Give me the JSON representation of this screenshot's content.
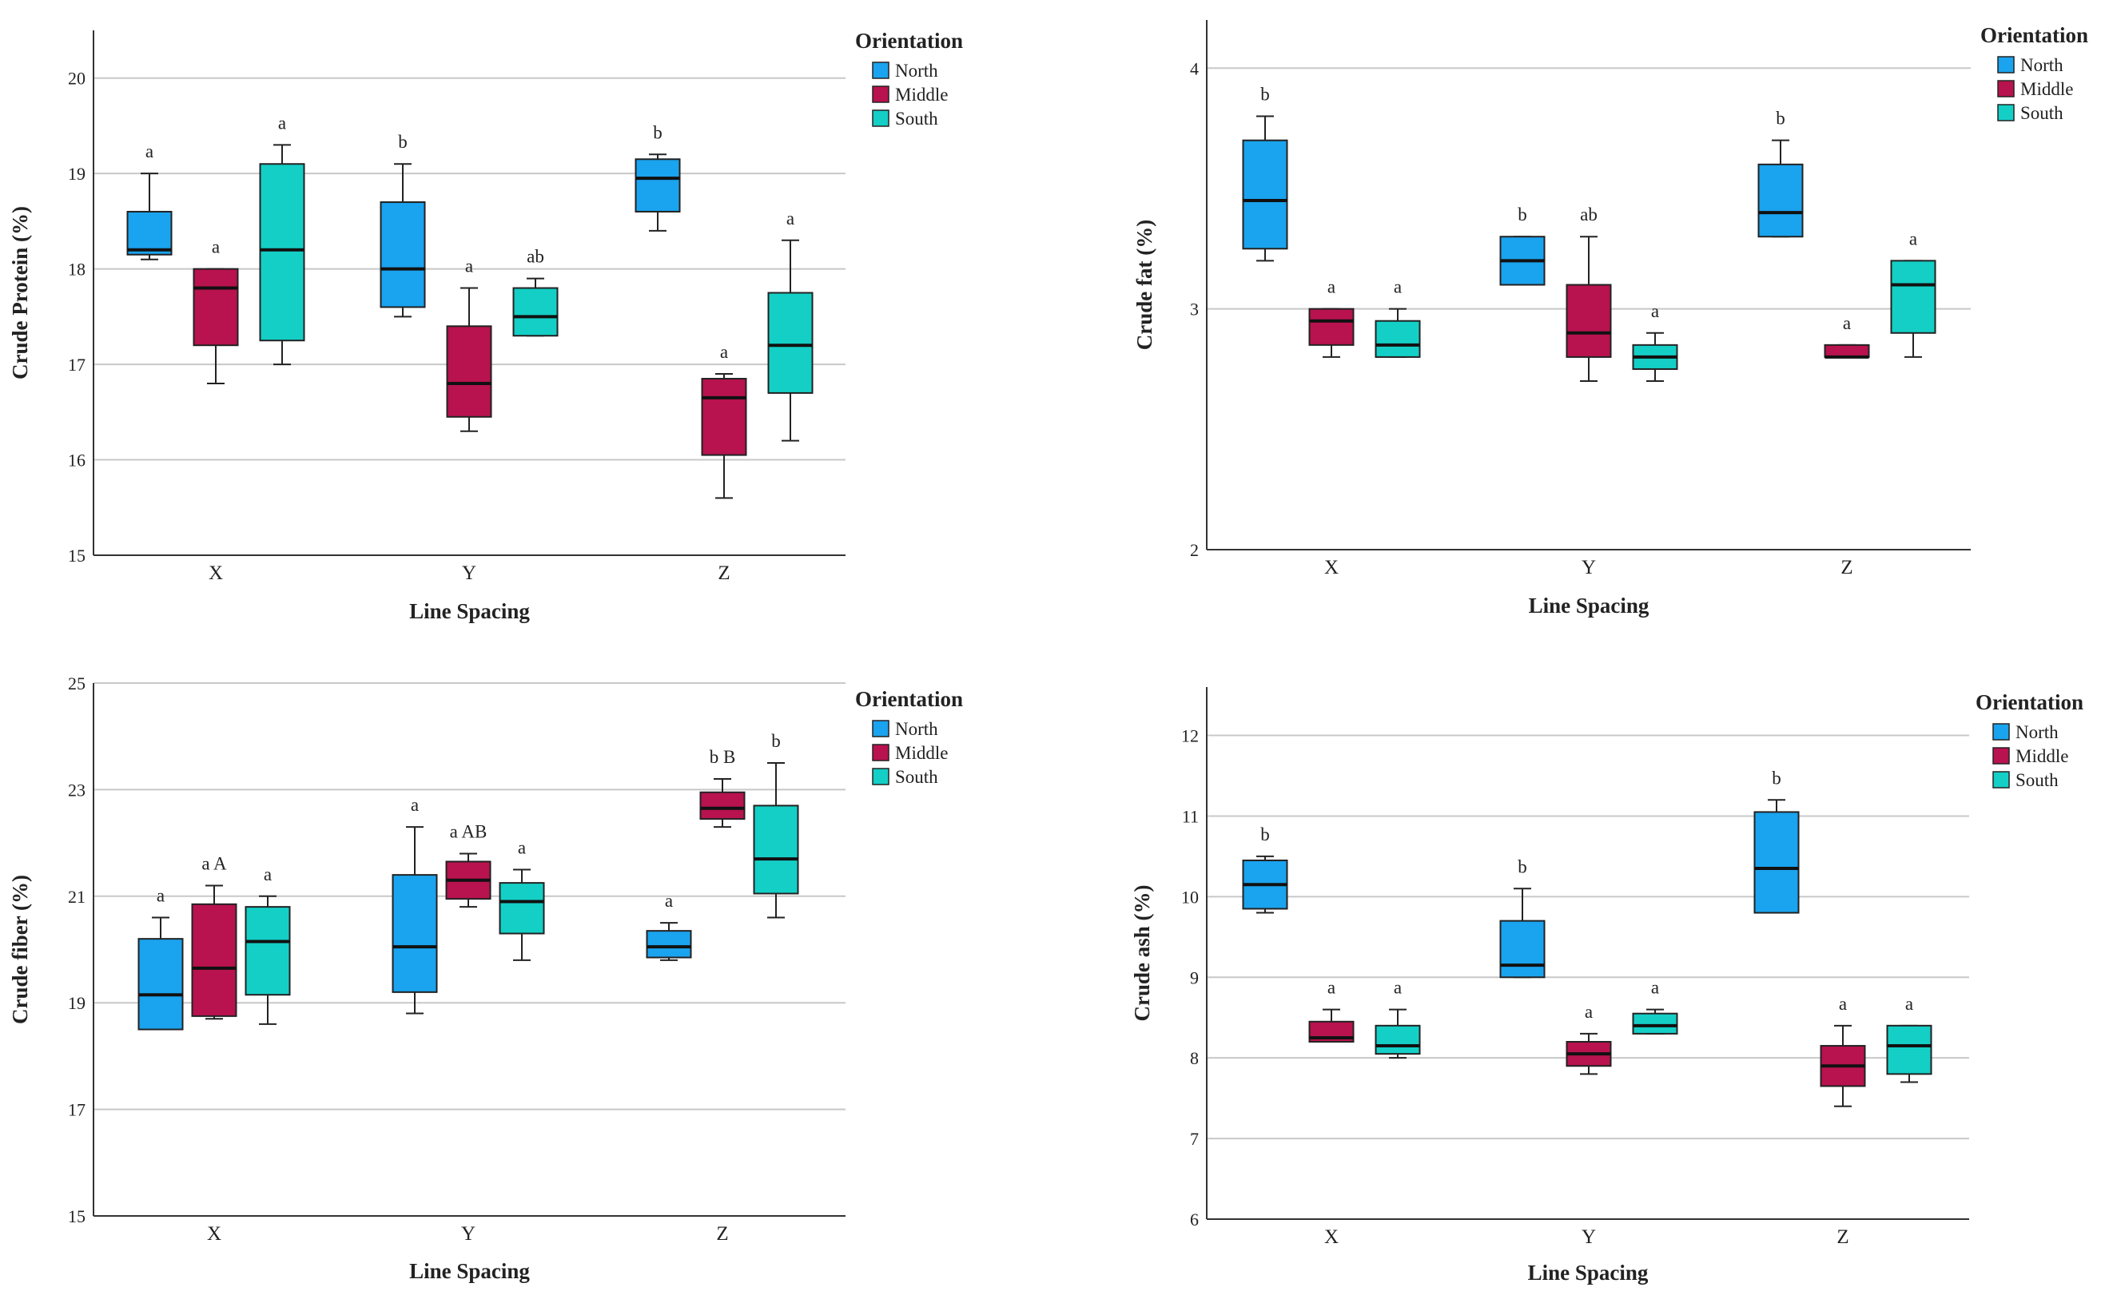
{
  "legend": {
    "title": "Orientation",
    "series": [
      {
        "name": "North",
        "color": "#1aa3ee"
      },
      {
        "name": "Middle",
        "color": "#b8124f"
      },
      {
        "name": "South",
        "color": "#14cfc6"
      }
    ]
  },
  "chart_data": [
    {
      "type": "box",
      "title": "",
      "xlabel": "Line Spacing",
      "ylabel": "Crude Protein (%)",
      "ylim": [
        15,
        20.5
      ],
      "yticks": [
        15,
        16,
        17,
        18,
        19,
        20
      ],
      "categories": [
        "X",
        "Y",
        "Z"
      ],
      "series": [
        {
          "name": "North",
          "boxes": [
            {
              "min": 18.1,
              "q1": 18.15,
              "median": 18.2,
              "q3": 18.6,
              "max": 19.0,
              "letter": "a"
            },
            {
              "min": 17.5,
              "q1": 17.6,
              "median": 18.0,
              "q3": 18.7,
              "max": 19.1,
              "letter": "b"
            },
            {
              "min": 18.4,
              "q1": 18.6,
              "median": 18.95,
              "q3": 19.15,
              "max": 19.2,
              "letter": "b"
            }
          ]
        },
        {
          "name": "Middle",
          "boxes": [
            {
              "min": 16.8,
              "q1": 17.2,
              "median": 17.8,
              "q3": 18.0,
              "max": 18.0,
              "letter": "a"
            },
            {
              "min": 16.3,
              "q1": 16.45,
              "median": 16.8,
              "q3": 17.4,
              "max": 17.8,
              "letter": "a"
            },
            {
              "min": 15.6,
              "q1": 16.05,
              "median": 16.65,
              "q3": 16.85,
              "max": 16.9,
              "letter": "a"
            }
          ]
        },
        {
          "name": "South",
          "boxes": [
            {
              "min": 17.0,
              "q1": 17.25,
              "median": 18.2,
              "q3": 19.1,
              "max": 19.3,
              "letter": "a"
            },
            {
              "min": 17.3,
              "q1": 17.3,
              "median": 17.5,
              "q3": 17.8,
              "max": 17.9,
              "letter": "ab"
            },
            {
              "min": 16.2,
              "q1": 16.7,
              "median": 17.2,
              "q3": 17.75,
              "max": 18.3,
              "letter": "a"
            }
          ]
        }
      ]
    },
    {
      "type": "box",
      "title": "",
      "xlabel": "Line Spacing",
      "ylabel": "Crude fat (%)",
      "ylim": [
        2,
        4.2
      ],
      "yticks": [
        2,
        3,
        4
      ],
      "categories": [
        "X",
        "Y",
        "Z"
      ],
      "series": [
        {
          "name": "North",
          "boxes": [
            {
              "min": 3.2,
              "q1": 3.25,
              "median": 3.45,
              "q3": 3.7,
              "max": 3.8,
              "letter": "b"
            },
            {
              "min": 3.1,
              "q1": 3.1,
              "median": 3.2,
              "q3": 3.3,
              "max": 3.3,
              "letter": "b"
            },
            {
              "min": 3.3,
              "q1": 3.3,
              "median": 3.4,
              "q3": 3.6,
              "max": 3.7,
              "letter": "b"
            }
          ]
        },
        {
          "name": "Middle",
          "boxes": [
            {
              "min": 2.8,
              "q1": 2.85,
              "median": 2.95,
              "q3": 3.0,
              "max": 3.0,
              "letter": "a"
            },
            {
              "min": 2.7,
              "q1": 2.8,
              "median": 2.9,
              "q3": 3.1,
              "max": 3.3,
              "letter": "ab"
            },
            {
              "min": 2.8,
              "q1": 2.8,
              "median": 2.8,
              "q3": 2.85,
              "max": 2.85,
              "letter": "a"
            }
          ]
        },
        {
          "name": "South",
          "boxes": [
            {
              "min": 2.8,
              "q1": 2.8,
              "median": 2.85,
              "q3": 2.95,
              "max": 3.0,
              "letter": "a"
            },
            {
              "min": 2.7,
              "q1": 2.75,
              "median": 2.8,
              "q3": 2.85,
              "max": 2.9,
              "letter": "a"
            },
            {
              "min": 2.8,
              "q1": 2.9,
              "median": 3.1,
              "q3": 3.2,
              "max": 3.2,
              "letter": "a"
            }
          ]
        }
      ]
    },
    {
      "type": "box",
      "title": "",
      "xlabel": "Line Spacing",
      "ylabel": "Crude fiber (%)",
      "ylim": [
        15,
        25
      ],
      "yticks": [
        15,
        17,
        19,
        21,
        23,
        25
      ],
      "categories": [
        "X",
        "Y",
        "Z"
      ],
      "series": [
        {
          "name": "North",
          "boxes": [
            {
              "min": 18.5,
              "q1": 18.5,
              "median": 19.15,
              "q3": 20.2,
              "max": 20.6,
              "letter": "a"
            },
            {
              "min": 18.8,
              "q1": 19.2,
              "median": 20.05,
              "q3": 21.4,
              "max": 22.3,
              "letter": "a"
            },
            {
              "min": 19.8,
              "q1": 19.85,
              "median": 20.05,
              "q3": 20.35,
              "max": 20.5,
              "letter": "a"
            }
          ]
        },
        {
          "name": "Middle",
          "boxes": [
            {
              "min": 18.7,
              "q1": 18.75,
              "median": 19.65,
              "q3": 20.85,
              "max": 21.2,
              "letter": "a A"
            },
            {
              "min": 20.8,
              "q1": 20.95,
              "median": 21.3,
              "q3": 21.65,
              "max": 21.8,
              "letter": "a AB"
            },
            {
              "min": 22.3,
              "q1": 22.45,
              "median": 22.65,
              "q3": 22.95,
              "max": 23.2,
              "letter": "b B"
            }
          ]
        },
        {
          "name": "South",
          "boxes": [
            {
              "min": 18.6,
              "q1": 19.15,
              "median": 20.15,
              "q3": 20.8,
              "max": 21.0,
              "letter": "a"
            },
            {
              "min": 19.8,
              "q1": 20.3,
              "median": 20.9,
              "q3": 21.25,
              "max": 21.5,
              "letter": "a"
            },
            {
              "min": 20.6,
              "q1": 21.05,
              "median": 21.7,
              "q3": 22.7,
              "max": 23.5,
              "letter": "b"
            }
          ]
        }
      ]
    },
    {
      "type": "box",
      "title": "",
      "xlabel": "Line Spacing",
      "ylabel": "Crude ash (%)",
      "ylim": [
        6,
        12.6
      ],
      "yticks": [
        6,
        7,
        8,
        9,
        10,
        11,
        12
      ],
      "categories": [
        "X",
        "Y",
        "Z"
      ],
      "series": [
        {
          "name": "North",
          "boxes": [
            {
              "min": 9.8,
              "q1": 9.85,
              "median": 10.15,
              "q3": 10.45,
              "max": 10.5,
              "letter": "b"
            },
            {
              "min": 9.0,
              "q1": 9.0,
              "median": 9.15,
              "q3": 9.7,
              "max": 10.1,
              "letter": "b"
            },
            {
              "min": 9.8,
              "q1": 9.8,
              "median": 10.35,
              "q3": 11.05,
              "max": 11.2,
              "letter": "b"
            }
          ]
        },
        {
          "name": "Middle",
          "boxes": [
            {
              "min": 8.2,
              "q1": 8.2,
              "median": 8.25,
              "q3": 8.45,
              "max": 8.6,
              "letter": "a"
            },
            {
              "min": 7.8,
              "q1": 7.9,
              "median": 8.05,
              "q3": 8.2,
              "max": 8.3,
              "letter": "a"
            },
            {
              "min": 7.4,
              "q1": 7.65,
              "median": 7.9,
              "q3": 8.15,
              "max": 8.4,
              "letter": "a"
            }
          ]
        },
        {
          "name": "South",
          "boxes": [
            {
              "min": 8.0,
              "q1": 8.05,
              "median": 8.15,
              "q3": 8.4,
              "max": 8.6,
              "letter": "a"
            },
            {
              "min": 8.3,
              "q1": 8.3,
              "median": 8.4,
              "q3": 8.55,
              "max": 8.6,
              "letter": "a"
            },
            {
              "min": 7.7,
              "q1": 7.8,
              "median": 8.15,
              "q3": 8.4,
              "max": 8.4,
              "letter": "a"
            }
          ]
        }
      ]
    }
  ]
}
